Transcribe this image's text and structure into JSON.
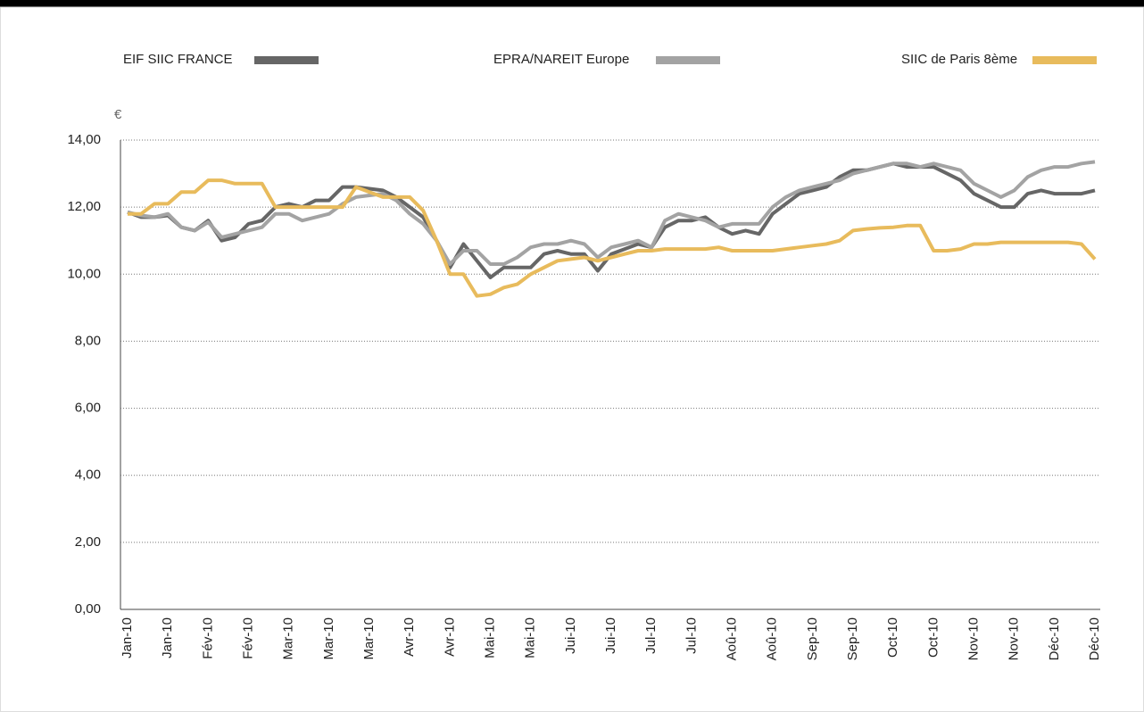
{
  "chart_data": {
    "type": "line",
    "y_unit": "€",
    "categories": [
      "Jan-10",
      null,
      null,
      "Jan-10",
      null,
      null,
      "Fév-10",
      null,
      null,
      "Fév-10",
      null,
      null,
      "Mar-10",
      null,
      null,
      "Mar-10",
      null,
      null,
      "Mar-10",
      null,
      null,
      "Avr-10",
      null,
      null,
      "Avr-10",
      null,
      null,
      "Mai-10",
      null,
      null,
      "Mai-10",
      null,
      null,
      "Jui-10",
      null,
      null,
      "Jui-10",
      null,
      null,
      "Jul-10",
      null,
      null,
      "Jul-10",
      null,
      null,
      "Aoû-10",
      null,
      null,
      "Aoû-10",
      null,
      null,
      "Sep-10",
      null,
      null,
      "Sep-10",
      null,
      null,
      "Oct-10",
      null,
      null,
      "Oct-10",
      null,
      null,
      "Nov-10",
      null,
      null,
      "Nov-10",
      null,
      null,
      "Déc-10",
      null,
      null,
      "Déc-10"
    ],
    "series": [
      {
        "name": "EIF SIIC FRANCE",
        "color": "#666666",
        "values": [
          11.85,
          11.7,
          11.7,
          11.75,
          11.4,
          11.3,
          11.6,
          11.0,
          11.1,
          11.5,
          11.6,
          12.0,
          12.1,
          12.0,
          12.2,
          12.2,
          12.6,
          12.6,
          12.55,
          12.5,
          12.3,
          12.0,
          11.7,
          11.0,
          10.2,
          10.9,
          10.4,
          9.9,
          10.2,
          10.2,
          10.2,
          10.6,
          10.7,
          10.6,
          10.6,
          10.1,
          10.6,
          10.75,
          10.9,
          10.8,
          11.4,
          11.6,
          11.6,
          11.7,
          11.4,
          11.2,
          11.3,
          11.2,
          11.8,
          12.1,
          12.4,
          12.5,
          12.6,
          12.9,
          13.1,
          13.1,
          13.2,
          13.3,
          13.2,
          13.2,
          13.2,
          13.0,
          12.8,
          12.4,
          12.2,
          12.0,
          12.0,
          12.4,
          12.5,
          12.4,
          12.4,
          12.4,
          12.5
        ]
      },
      {
        "name": "EPRA/NAREIT Europe",
        "color": "#a3a3a3",
        "values": [
          11.85,
          11.75,
          11.7,
          11.8,
          11.4,
          11.3,
          11.55,
          11.1,
          11.2,
          11.3,
          11.4,
          11.8,
          11.8,
          11.6,
          11.7,
          11.8,
          12.1,
          12.3,
          12.35,
          12.4,
          12.2,
          11.8,
          11.5,
          11.0,
          10.3,
          10.7,
          10.7,
          10.3,
          10.3,
          10.5,
          10.8,
          10.9,
          10.9,
          11.0,
          10.9,
          10.5,
          10.8,
          10.9,
          11.0,
          10.8,
          11.6,
          11.8,
          11.7,
          11.6,
          11.4,
          11.5,
          11.5,
          11.5,
          12.0,
          12.3,
          12.5,
          12.6,
          12.7,
          12.8,
          13.0,
          13.1,
          13.2,
          13.3,
          13.3,
          13.2,
          13.3,
          13.2,
          13.1,
          12.7,
          12.5,
          12.3,
          12.5,
          12.9,
          13.1,
          13.2,
          13.2,
          13.3,
          13.35
        ]
      },
      {
        "name": "SIIC de Paris 8ème",
        "color": "#e8bb5c",
        "values": [
          11.8,
          11.8,
          12.1,
          12.1,
          12.45,
          12.45,
          12.8,
          12.8,
          12.7,
          12.7,
          12.7,
          12.0,
          12.0,
          12.0,
          12.0,
          12.0,
          12.0,
          12.6,
          12.45,
          12.3,
          12.3,
          12.3,
          11.9,
          11.0,
          10.0,
          10.0,
          9.35,
          9.4,
          9.6,
          9.7,
          10.0,
          10.2,
          10.4,
          10.45,
          10.5,
          10.4,
          10.5,
          10.6,
          10.7,
          10.7,
          10.75,
          10.75,
          10.75,
          10.75,
          10.8,
          10.7,
          10.7,
          10.7,
          10.7,
          10.75,
          10.8,
          10.85,
          10.9,
          11.0,
          11.3,
          11.35,
          11.38,
          11.4,
          11.45,
          11.45,
          10.7,
          10.7,
          10.75,
          10.9,
          10.9,
          10.95,
          10.95,
          10.95,
          10.95,
          10.95,
          10.95,
          10.9,
          10.45
        ]
      }
    ],
    "ylim": [
      0,
      14
    ],
    "yticks": [
      {
        "value": 0,
        "label": "0,00"
      },
      {
        "value": 2,
        "label": "2,00"
      },
      {
        "value": 4,
        "label": "4,00"
      },
      {
        "value": 6,
        "label": "6,00"
      },
      {
        "value": 8,
        "label": "8,00"
      },
      {
        "value": 10,
        "label": "10,00"
      },
      {
        "value": 12,
        "label": "12,00"
      },
      {
        "value": 14,
        "label": "14,00"
      }
    ],
    "grid": true
  }
}
